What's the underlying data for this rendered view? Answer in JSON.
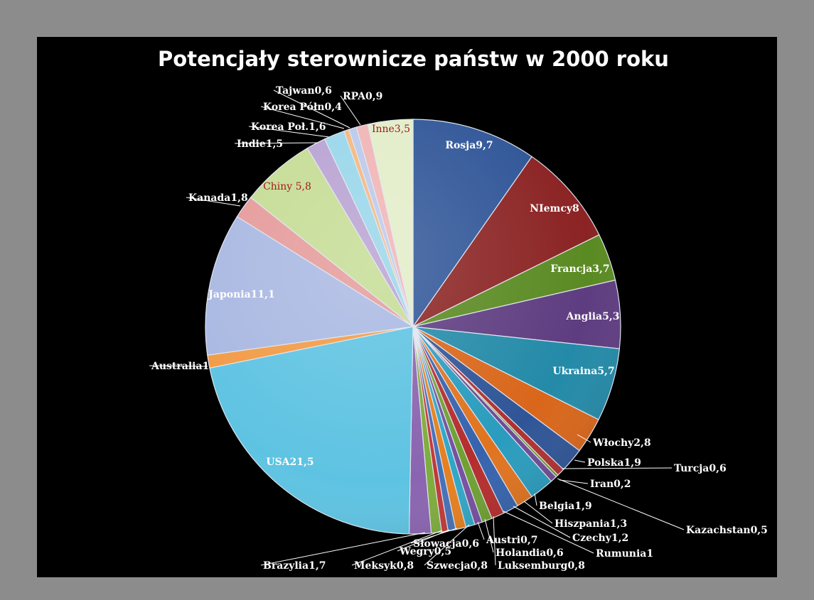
{
  "chart_data": {
    "type": "pie",
    "title": "Potencjały sterownicze państw w 2000 roku",
    "slices": [
      {
        "name": "Rosja",
        "value": 9.7,
        "label": "Rosja9,7",
        "color": "#2f5597"
      },
      {
        "name": "NIemcy",
        "value": 8,
        "label": "NIemcy8",
        "color": "#8b2323"
      },
      {
        "name": "Francja",
        "value": 3.7,
        "label": "Francja3,7",
        "color": "#5a8a22"
      },
      {
        "name": "Anglia",
        "value": 5.3,
        "label": "Anglia5,3",
        "color": "#5e3c80"
      },
      {
        "name": "Ukraina",
        "value": 5.7,
        "label": "Ukraina5,7",
        "color": "#238aa8"
      },
      {
        "name": "Włochy",
        "value": 2.8,
        "label": "Włochy2,8",
        "color": "#d9661a"
      },
      {
        "name": "Polska",
        "value": 1.9,
        "label": "Polska1,9",
        "color": "#2f5597"
      },
      {
        "name": "Turcja",
        "value": 0.6,
        "label": "Turcja0,6",
        "color": "#b03030"
      },
      {
        "name": "Iran",
        "value": 0.2,
        "label": "Iran0,2",
        "color": "#6e9a2e"
      },
      {
        "name": "Kazachstan",
        "value": 0.5,
        "label": "Kazachstan0,5",
        "color": "#6e4a94"
      },
      {
        "name": "Belgia",
        "value": 1.9,
        "label": "Belgia1,9",
        "color": "#2a9cbd"
      },
      {
        "name": "Hiszpania",
        "value": 1.3,
        "label": "Hiszpania1,3",
        "color": "#e0731f"
      },
      {
        "name": "Czechy",
        "value": 1.2,
        "label": "Czechy1,2",
        "color": "#3663ad"
      },
      {
        "name": "Rumunia",
        "value": 1,
        "label": "Rumunia1",
        "color": "#b52d2d"
      },
      {
        "name": "Luksemburg",
        "value": 0.8,
        "label": "Luksemburg0,8",
        "color": "#6fa032"
      },
      {
        "name": "Holandia",
        "value": 0.6,
        "label": "Holandia0,6",
        "color": "#7550a0"
      },
      {
        "name": "Austri",
        "value": 0.7,
        "label": "Austri0,7",
        "color": "#30a6c6"
      },
      {
        "name": "Szwecja",
        "value": 0.8,
        "label": "Szwecja0,8",
        "color": "#e5801f"
      },
      {
        "name": "Słowacja",
        "value": 0.6,
        "label": "Słowacja0,6",
        "color": "#4470b8"
      },
      {
        "name": "Wegry",
        "value": 0.5,
        "label": "Wegry0,5",
        "color": "#c23838"
      },
      {
        "name": "Meksyk",
        "value": 0.8,
        "label": "Meksyk0,8",
        "color": "#7eac3c"
      },
      {
        "name": "Brazylia",
        "value": 1.7,
        "label": "Brazylia1,7",
        "color": "#8a64b0"
      },
      {
        "name": "USA",
        "value": 21.5,
        "label": "USA21,5",
        "color": "#5ec3e2"
      },
      {
        "name": "Australia",
        "value": 1,
        "label": "Australia1",
        "color": "#f29a45"
      },
      {
        "name": "Japonia",
        "value": 11.1,
        "label": "Japonia11,1",
        "color": "#a9b8e2"
      },
      {
        "name": "Kanada",
        "value": 1.8,
        "label": "Kanada1,8",
        "color": "#e59a9a"
      },
      {
        "name": "Chiny",
        "value": 5.8,
        "label": "Chiny 5,8",
        "color": "#c5dc94"
      },
      {
        "name": "Indie",
        "value": 1.5,
        "label": "Indie1,5",
        "color": "#b8a2d2"
      },
      {
        "name": "Korea Poł.",
        "value": 1.6,
        "label": "Korea Poł.1,6",
        "color": "#98d6ea"
      },
      {
        "name": "Korea Półn",
        "value": 0.4,
        "label": "Korea Półn0,4",
        "color": "#f5b67c"
      },
      {
        "name": "Tajwan",
        "value": 0.6,
        "label": "Tajwan0,6",
        "color": "#bac8ea"
      },
      {
        "name": "RPA",
        "value": 0.9,
        "label": "RPA0,9",
        "color": "#f0b4b4"
      },
      {
        "name": "Inne",
        "value": 3.5,
        "label": "Inne3,5",
        "color": "#e2edc8"
      }
    ]
  }
}
